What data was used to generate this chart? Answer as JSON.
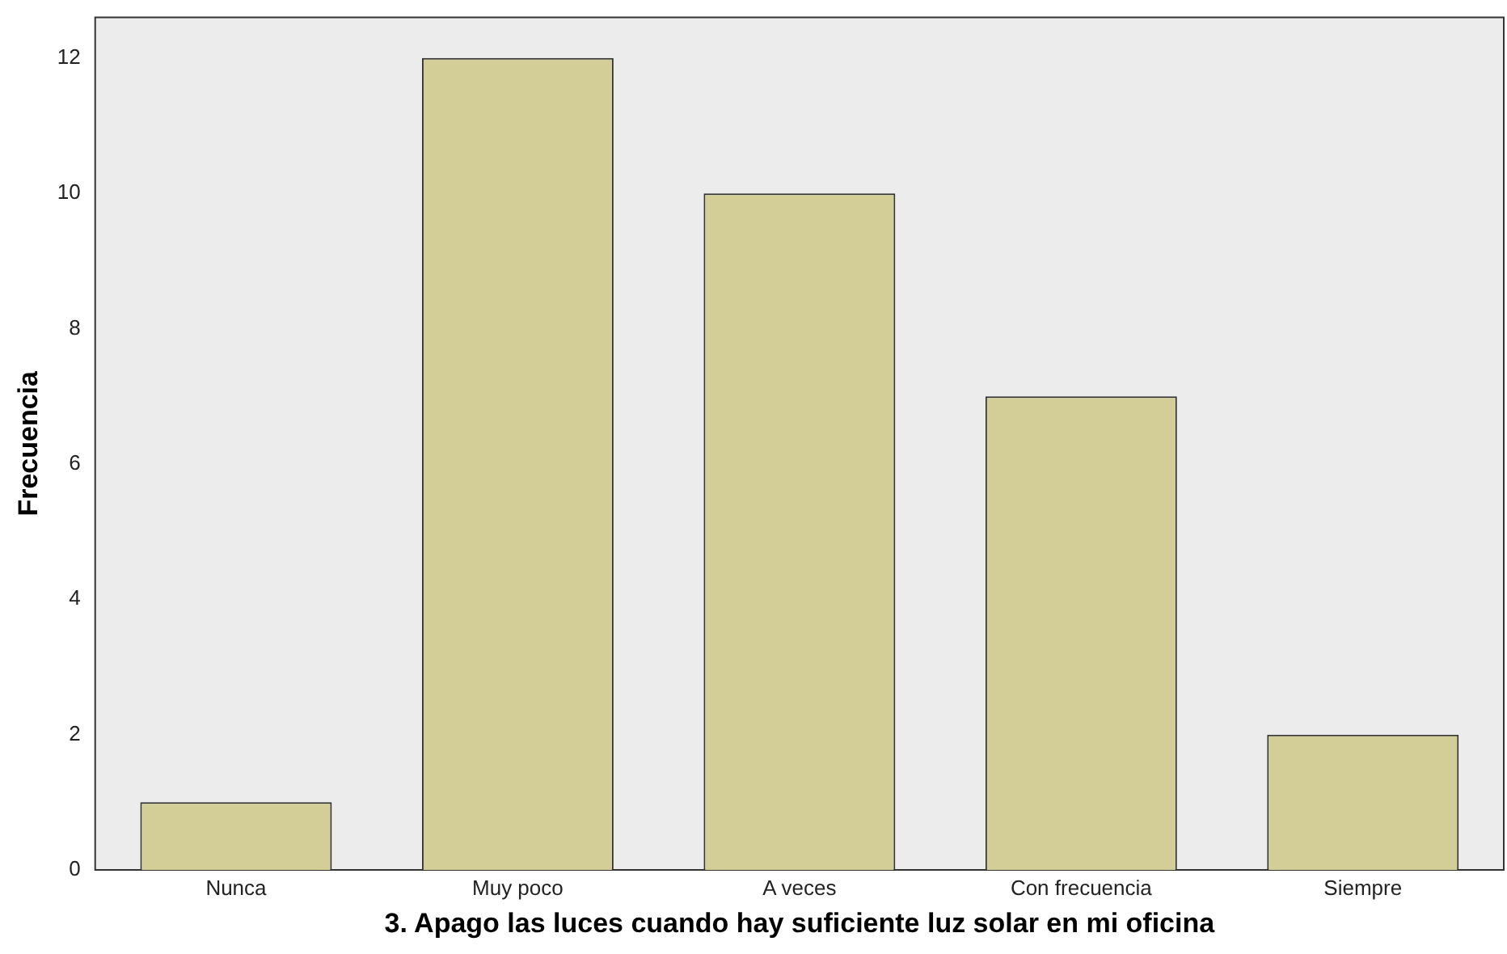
{
  "chart_data": {
    "type": "bar",
    "xlabel": "3. Apago las luces cuando hay suficiente luz solar en mi oficina",
    "ylabel": "Frecuencia",
    "categories": [
      "Nunca",
      "Muy poco",
      "A veces",
      "Con frecuencia",
      "Siempre"
    ],
    "values": [
      1,
      12,
      10,
      7,
      2
    ],
    "color": "#d3ce98",
    "ylim": [
      0,
      12.6
    ],
    "yticks": [
      0,
      2,
      4,
      6,
      8,
      10,
      12
    ],
    "grid": false,
    "legend": false
  }
}
